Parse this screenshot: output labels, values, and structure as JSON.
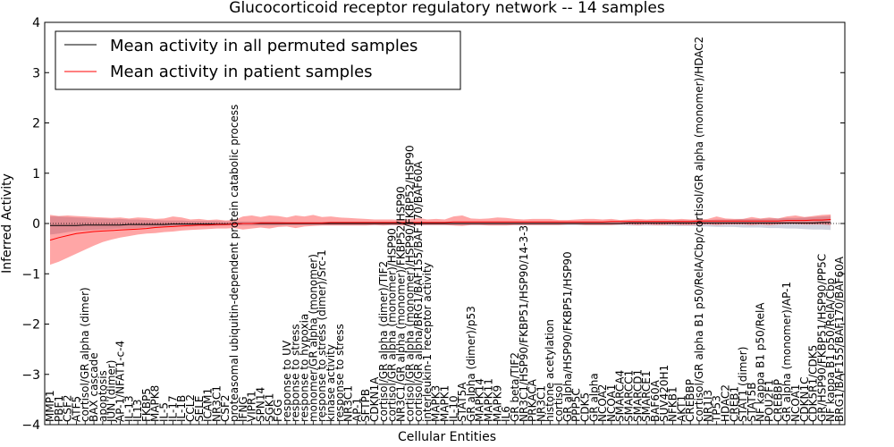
{
  "chart_data": {
    "type": "line",
    "title": "Glucocorticoid receptor regulatory network -- 14 samples",
    "xlabel": "Cellular Entities",
    "ylabel": "Inferred Activity",
    "ylim": [
      -4,
      4
    ],
    "yticks": [
      -4,
      -3,
      -2,
      -1,
      0,
      1,
      2,
      3,
      4
    ],
    "legend_position": "top-left",
    "grid": false,
    "colors": {
      "permuted": "#000000",
      "patient": "#ff0000",
      "patient_band": "#ff0000",
      "permuted_band": "#9aa0b8"
    },
    "entities": [
      "MMP1",
      "PBF1",
      "CSF2",
      "ATF5",
      "cortisol/GR alpha (dimer)",
      "BAX cascade",
      "apoptosis",
      "JUN (dimer)",
      "AP-1/NFAT1-c-4",
      "IL-13",
      "IL13",
      "FKBP5",
      "MAPK8",
      "IL-5",
      "IL-17",
      "IL-1B",
      "CCL2",
      "SELE",
      "ICAM1",
      "NR3C1",
      "CSF2",
      "proteasomal ubiquitin-dependent protein catabolic process",
      "IFNG",
      "VIPR1",
      "SPN14",
      "SGK1",
      "FGG",
      "response to UV",
      "response to stress",
      "response to hypoxia",
      "monomer/GR alpha (monomer)",
      "response to stress (dimer)/Src-1",
      "kinase activity",
      "response to stress",
      "NR3C1",
      "AP-1",
      "SFTPB",
      "CDKN1A",
      "cortisol/GR alpha (dimer)/TIF2",
      "cortisol/GR alpha (monomer)/HSP90",
      "NR3C1/GR alpha (monomer)/FKBP52/HSP90",
      "cortisol/GR alpha (monomer)/HSP90/FKBP52/HSP90",
      "cortisol/GR alpha/BRG1/BAF155/BAF170/BAF60A",
      "interleukin-1 receptor activity",
      "MAPK3",
      "MAPK1",
      "IL-10",
      "STAT5A",
      "GR alpha (dimer)/p53",
      "MAPK14",
      "MAPK11",
      "MAPK9",
      "IL6",
      "GR beta/TIF2",
      "NR3C1/HSP90/FKBP51/HSP90/14-3-3",
      "PRKACA",
      "NR3C1",
      "histone acetylation",
      "cortisol",
      "GR alpha/HSP90/FKBP51/HSP90",
      "PPP5C",
      "CDK5",
      "GR alpha",
      "NCOA2",
      "NCOA1",
      "SMARCA4",
      "SMARCC1",
      "SMARCD1",
      "SMARCE1",
      "BAF60A",
      "SUV420H1",
      "NFKB1",
      "AKT1",
      "CREBBP",
      "cortisol/GR alpha B1 p50/RelA/Cbp/cortisol/GR alpha (monomer)/HDAC2",
      "NR1I3",
      "TP53",
      "HDAC2",
      "CREB1",
      "STAT1 (dimer)",
      "STAT5B",
      "NF kappa B1 p50/RelA",
      "POU2F1",
      "CREBBP",
      "GR alpha (monomer)/AP-1",
      "NCOA1",
      "CDKN1C",
      "CDK5R1/CDK5",
      "GR/HSP90/FKBP51/HSP90/PP5C",
      "NF kappa B1 p50/RelA/Cbp",
      "BRG1/BAF155/BAF170/BAF60A"
    ],
    "series": [
      {
        "name": "Mean activity in all permuted samples",
        "values": [
          -0.04,
          -0.04,
          -0.04,
          -0.04,
          -0.03,
          -0.03,
          -0.03,
          -0.03,
          -0.03,
          -0.02,
          -0.02,
          -0.02,
          -0.02,
          -0.02,
          -0.01,
          -0.01,
          -0.01,
          -0.01,
          -0.01,
          -0.01,
          -0.01,
          -0.01,
          0.0,
          0.0,
          0.0,
          0.0,
          0.0,
          0.0,
          0.0,
          0.0,
          0.0,
          0.0,
          0.0,
          0.0,
          0.0,
          0.0,
          0.0,
          0.0,
          0.0,
          0.0,
          0.0,
          0.0,
          0.0,
          0.0,
          0.0,
          0.0,
          0.0,
          0.0,
          0.0,
          0.0,
          0.0,
          0.0,
          0.0,
          0.0,
          0.0,
          0.0,
          0.0,
          0.0,
          0.0,
          0.0,
          0.0,
          0.0,
          0.0,
          0.0,
          0.0,
          0.0,
          0.01,
          0.01,
          0.01,
          0.01,
          0.01,
          0.01,
          0.01,
          0.01,
          0.01,
          0.01,
          0.01,
          0.01,
          0.01,
          0.01,
          0.01,
          0.01,
          0.01,
          0.01,
          0.01,
          0.01,
          0.01,
          0.01,
          0.02,
          0.02
        ],
        "lower": [
          -0.22,
          -0.2,
          -0.17,
          -0.15,
          -0.14,
          -0.13,
          -0.12,
          -0.11,
          -0.1,
          -0.1,
          -0.09,
          -0.08,
          -0.08,
          -0.07,
          -0.07,
          -0.06,
          -0.06,
          -0.05,
          -0.05,
          -0.05,
          -0.04,
          -0.04,
          -0.04,
          -0.04,
          -0.04,
          -0.04,
          -0.04,
          -0.03,
          -0.03,
          -0.03,
          -0.03,
          -0.03,
          -0.03,
          -0.03,
          -0.03,
          -0.03,
          -0.03,
          -0.03,
          -0.03,
          -0.03,
          -0.03,
          -0.03,
          -0.03,
          -0.03,
          -0.03,
          -0.03,
          -0.03,
          -0.03,
          -0.03,
          -0.03,
          -0.03,
          -0.03,
          -0.03,
          -0.03,
          -0.03,
          -0.03,
          -0.03,
          -0.03,
          -0.03,
          -0.03,
          -0.03,
          -0.03,
          -0.03,
          -0.03,
          -0.03,
          -0.03,
          -0.04,
          -0.04,
          -0.04,
          -0.04,
          -0.04,
          -0.05,
          -0.05,
          -0.05,
          -0.06,
          -0.06,
          -0.07,
          -0.07,
          -0.07,
          -0.08,
          -0.08,
          -0.08,
          -0.09,
          -0.09,
          -0.1,
          -0.1,
          -0.11,
          -0.12,
          -0.12,
          -0.13
        ],
        "upper": [
          0.14,
          0.14,
          0.13,
          0.12,
          0.11,
          0.1,
          0.1,
          0.09,
          0.09,
          0.08,
          0.08,
          0.07,
          0.07,
          0.06,
          0.06,
          0.06,
          0.05,
          0.05,
          0.05,
          0.05,
          0.04,
          0.04,
          0.04,
          0.04,
          0.04,
          0.04,
          0.04,
          0.03,
          0.03,
          0.03,
          0.03,
          0.03,
          0.03,
          0.03,
          0.03,
          0.03,
          0.03,
          0.03,
          0.03,
          0.03,
          0.03,
          0.03,
          0.03,
          0.03,
          0.03,
          0.03,
          0.03,
          0.03,
          0.03,
          0.03,
          0.03,
          0.03,
          0.03,
          0.03,
          0.03,
          0.03,
          0.03,
          0.03,
          0.03,
          0.03,
          0.03,
          0.03,
          0.03,
          0.03,
          0.03,
          0.03,
          0.04,
          0.04,
          0.05,
          0.05,
          0.05,
          0.06,
          0.06,
          0.06,
          0.07,
          0.07,
          0.08,
          0.08,
          0.08,
          0.09,
          0.09,
          0.09,
          0.1,
          0.1,
          0.11,
          0.11,
          0.12,
          0.13,
          0.14,
          0.15
        ]
      },
      {
        "name": "Mean activity in patient samples",
        "values": [
          -0.33,
          -0.28,
          -0.24,
          -0.2,
          -0.18,
          -0.16,
          -0.15,
          -0.14,
          -0.13,
          -0.12,
          -0.11,
          -0.1,
          -0.08,
          -0.07,
          -0.06,
          -0.05,
          -0.04,
          -0.03,
          -0.03,
          -0.02,
          -0.02,
          -0.01,
          0.0,
          0.0,
          0.01,
          0.01,
          0.01,
          0.01,
          0.01,
          0.01,
          0.01,
          0.01,
          0.02,
          0.02,
          0.02,
          0.02,
          0.02,
          0.02,
          0.02,
          0.02,
          0.02,
          0.02,
          0.02,
          0.02,
          0.02,
          0.02,
          0.03,
          0.03,
          0.03,
          0.03,
          0.03,
          0.03,
          0.03,
          0.03,
          0.03,
          0.03,
          0.03,
          0.03,
          0.03,
          0.03,
          0.03,
          0.03,
          0.03,
          0.03,
          0.04,
          0.04,
          0.04,
          0.04,
          0.04,
          0.04,
          0.04,
          0.04,
          0.04,
          0.04,
          0.05,
          0.05,
          0.05,
          0.05,
          0.05,
          0.05,
          0.05,
          0.05,
          0.05,
          0.05,
          0.06,
          0.06,
          0.06,
          0.07,
          0.07,
          0.08
        ],
        "lower": [
          -0.82,
          -0.76,
          -0.68,
          -0.6,
          -0.52,
          -0.44,
          -0.37,
          -0.32,
          -0.28,
          -0.25,
          -0.22,
          -0.2,
          -0.19,
          -0.17,
          -0.16,
          -0.14,
          -0.13,
          -0.12,
          -0.11,
          -0.1,
          -0.1,
          -0.09,
          -0.12,
          -0.1,
          -0.08,
          -0.1,
          -0.07,
          -0.06,
          -0.09,
          -0.06,
          -0.05,
          -0.04,
          -0.04,
          -0.04,
          -0.04,
          -0.04,
          -0.04,
          -0.03,
          -0.04,
          -0.03,
          -0.04,
          -0.03,
          -0.03,
          -0.03,
          -0.03,
          -0.03,
          -0.04,
          -0.05,
          -0.03,
          -0.03,
          -0.04,
          -0.04,
          -0.04,
          -0.03,
          -0.03,
          -0.03,
          -0.03,
          -0.03,
          -0.03,
          -0.02,
          -0.02,
          -0.03,
          -0.03,
          -0.03,
          -0.03,
          -0.02,
          -0.02,
          -0.03,
          -0.02,
          -0.03,
          -0.03,
          -0.02,
          -0.03,
          -0.03,
          -0.02,
          -0.02,
          -0.03,
          -0.02,
          -0.02,
          -0.02,
          -0.03,
          -0.02,
          -0.03,
          -0.02,
          -0.01,
          -0.01,
          -0.02,
          -0.02,
          -0.02,
          -0.03
        ],
        "upper": [
          0.17,
          0.15,
          0.16,
          0.15,
          0.14,
          0.13,
          0.12,
          0.11,
          0.12,
          0.1,
          0.12,
          0.11,
          0.09,
          0.1,
          0.14,
          0.12,
          0.08,
          0.09,
          0.07,
          0.08,
          0.06,
          0.07,
          0.14,
          0.16,
          0.13,
          0.16,
          0.15,
          0.12,
          0.16,
          0.14,
          0.17,
          0.13,
          0.14,
          0.12,
          0.11,
          0.1,
          0.09,
          0.08,
          0.08,
          0.08,
          0.07,
          0.09,
          0.11,
          0.08,
          0.09,
          0.08,
          0.14,
          0.16,
          0.1,
          0.09,
          0.1,
          0.12,
          0.11,
          0.09,
          0.08,
          0.09,
          0.09,
          0.09,
          0.07,
          0.07,
          0.08,
          0.09,
          0.09,
          0.08,
          0.09,
          0.07,
          0.08,
          0.09,
          0.08,
          0.09,
          0.09,
          0.08,
          0.09,
          0.08,
          0.08,
          0.09,
          0.14,
          0.1,
          0.09,
          0.09,
          0.13,
          0.1,
          0.12,
          0.1,
          0.14,
          0.16,
          0.13,
          0.15,
          0.17,
          0.18
        ]
      }
    ]
  }
}
